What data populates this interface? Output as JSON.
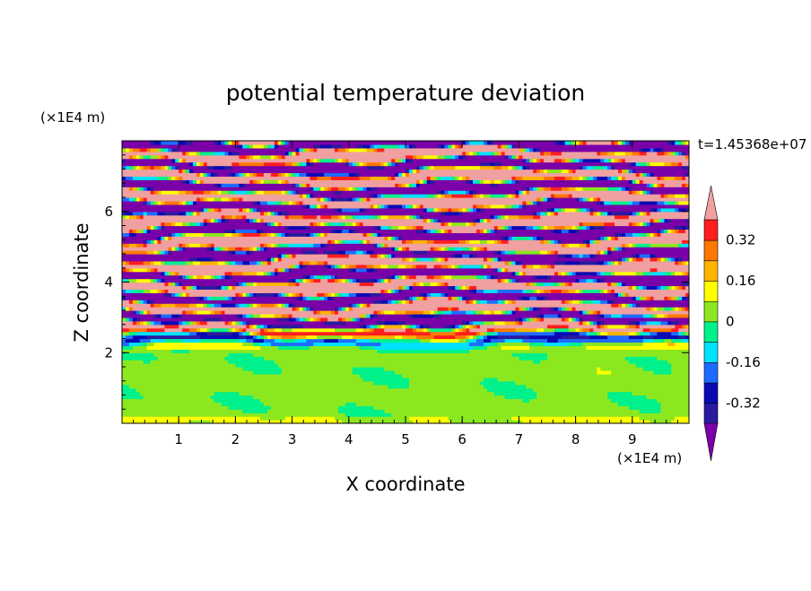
{
  "chart_data": {
    "type": "heatmap",
    "title": "potential temperature deviation",
    "xlabel": "X coordinate",
    "ylabel": "Z coordinate",
    "x_unit_label": "(×1E4 m)",
    "y_unit_label": "(×1E4 m)",
    "time_label": "t=1.45368e+07",
    "xlim": [
      0,
      10
    ],
    "ylim": [
      0,
      8
    ],
    "x_ticks": [
      1,
      2,
      3,
      4,
      5,
      6,
      7,
      8,
      9
    ],
    "y_ticks": [
      2,
      4,
      6
    ],
    "colorbar": {
      "levels": [
        -0.48,
        -0.4,
        -0.32,
        -0.24,
        -0.16,
        -0.08,
        0,
        0.08,
        0.16,
        0.24,
        0.32,
        0.4,
        0.48
      ],
      "labeled_ticks": [
        0.32,
        0.16,
        0,
        -0.16,
        -0.32
      ],
      "colors": [
        "#7a00a8",
        "#2a1a9e",
        "#0a0ab4",
        "#1e6cff",
        "#00e0ff",
        "#00f08c",
        "#8ce81e",
        "#ffff00",
        "#ffb400",
        "#ff7800",
        "#ff1e1e",
        "#f0a0a0"
      ],
      "over_color": "#f0a0a0",
      "under_color": "#7a00a8"
    },
    "field_description": "stratified layer 2-8 (x1E4 m) with alternating purple/pink bands; near-neutral green region below z=2"
  }
}
